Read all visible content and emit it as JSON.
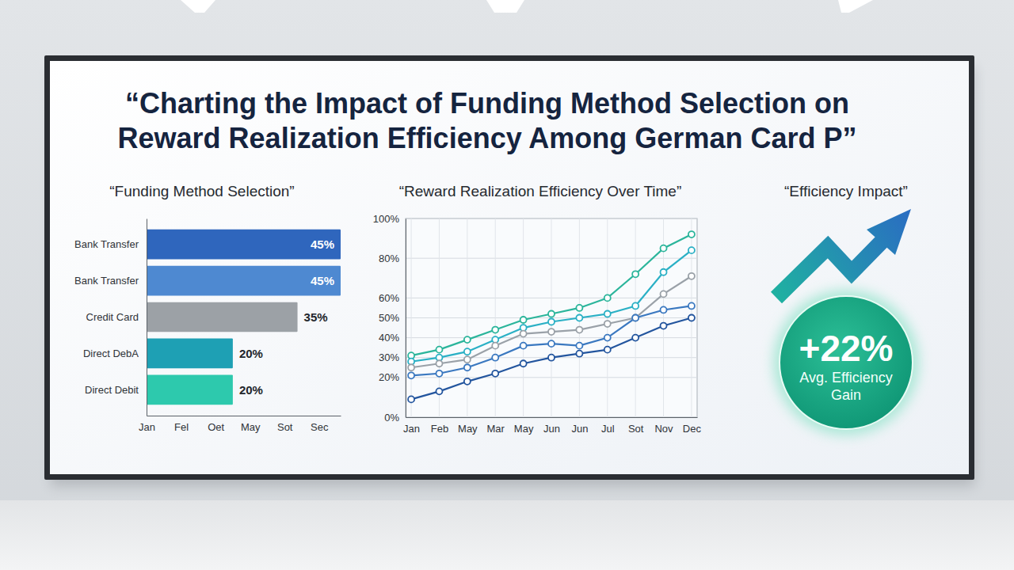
{
  "title": "“Charting the Impact of Funding Method Selection on Reward Realization Efficiency Among German Card P”",
  "chart_data": [
    {
      "type": "bar",
      "orientation": "horizontal",
      "title": "“Funding Method Selection”",
      "categories": [
        "Bank Transfer",
        "Bank Transfer",
        "Credit Card",
        "Direct DebA",
        "Direct Debit"
      ],
      "values": [
        45,
        45,
        35,
        20,
        20
      ],
      "value_labels": [
        "45%",
        "45%",
        "35%",
        "20%",
        "20%"
      ],
      "data_labels": true,
      "colors": [
        "#2f66bd",
        "#4e89d1",
        "#9ca1a6",
        "#1ea0b4",
        "#2dc9ad"
      ],
      "xlim": [
        0,
        45
      ],
      "xticks": [
        {
          "value": 0,
          "label": "Jan"
        },
        {
          "value": 8,
          "label": "Fel"
        },
        {
          "value": 16,
          "label": "Oet"
        },
        {
          "value": 24,
          "label": "May"
        },
        {
          "value": 32,
          "label": "Sot"
        },
        {
          "value": 40,
          "label": "Sec"
        }
      ],
      "grid": false
    },
    {
      "type": "line",
      "title": "“Reward Realization Efficiency Over Time”",
      "categories": [
        "Jan",
        "Feb",
        "May",
        "Mar",
        "May",
        "Jun",
        "Jun",
        "Jul",
        "Sot",
        "Nov",
        "Dec"
      ],
      "series": [
        {
          "color": "#2bb59b",
          "values": [
            31,
            34,
            39,
            44,
            49,
            52,
            55,
            60,
            72,
            85,
            92
          ]
        },
        {
          "color": "#2ab0c5",
          "values": [
            28,
            30,
            33,
            39,
            45,
            48,
            50,
            52,
            56,
            73,
            84
          ]
        },
        {
          "color": "#9aa1a8",
          "values": [
            25,
            27,
            29,
            36,
            42,
            43,
            44,
            47,
            50,
            62,
            71
          ]
        },
        {
          "color": "#3a78c0",
          "values": [
            21,
            22,
            25,
            30,
            36,
            37,
            36,
            40,
            50,
            54,
            56
          ]
        },
        {
          "color": "#23559e",
          "values": [
            9,
            13,
            18,
            22,
            27,
            30,
            32,
            34,
            40,
            46,
            50
          ]
        }
      ],
      "ylim": [
        0,
        100
      ],
      "yticks": [
        {
          "value": 0,
          "label": "0%"
        },
        {
          "value": 20,
          "label": "20%"
        },
        {
          "value": 30,
          "label": "30%"
        },
        {
          "value": 40,
          "label": "40%"
        },
        {
          "value": 50,
          "label": "50%"
        },
        {
          "value": 60,
          "label": "60%"
        },
        {
          "value": 80,
          "label": "80%"
        },
        {
          "value": 100,
          "label": "100%"
        }
      ],
      "grid": true,
      "marker": "circle"
    }
  ],
  "kpi": {
    "title": "“Efficiency Impact”",
    "value": 22,
    "value_label": "+22%",
    "caption": "Avg. Efficiency Gain"
  }
}
